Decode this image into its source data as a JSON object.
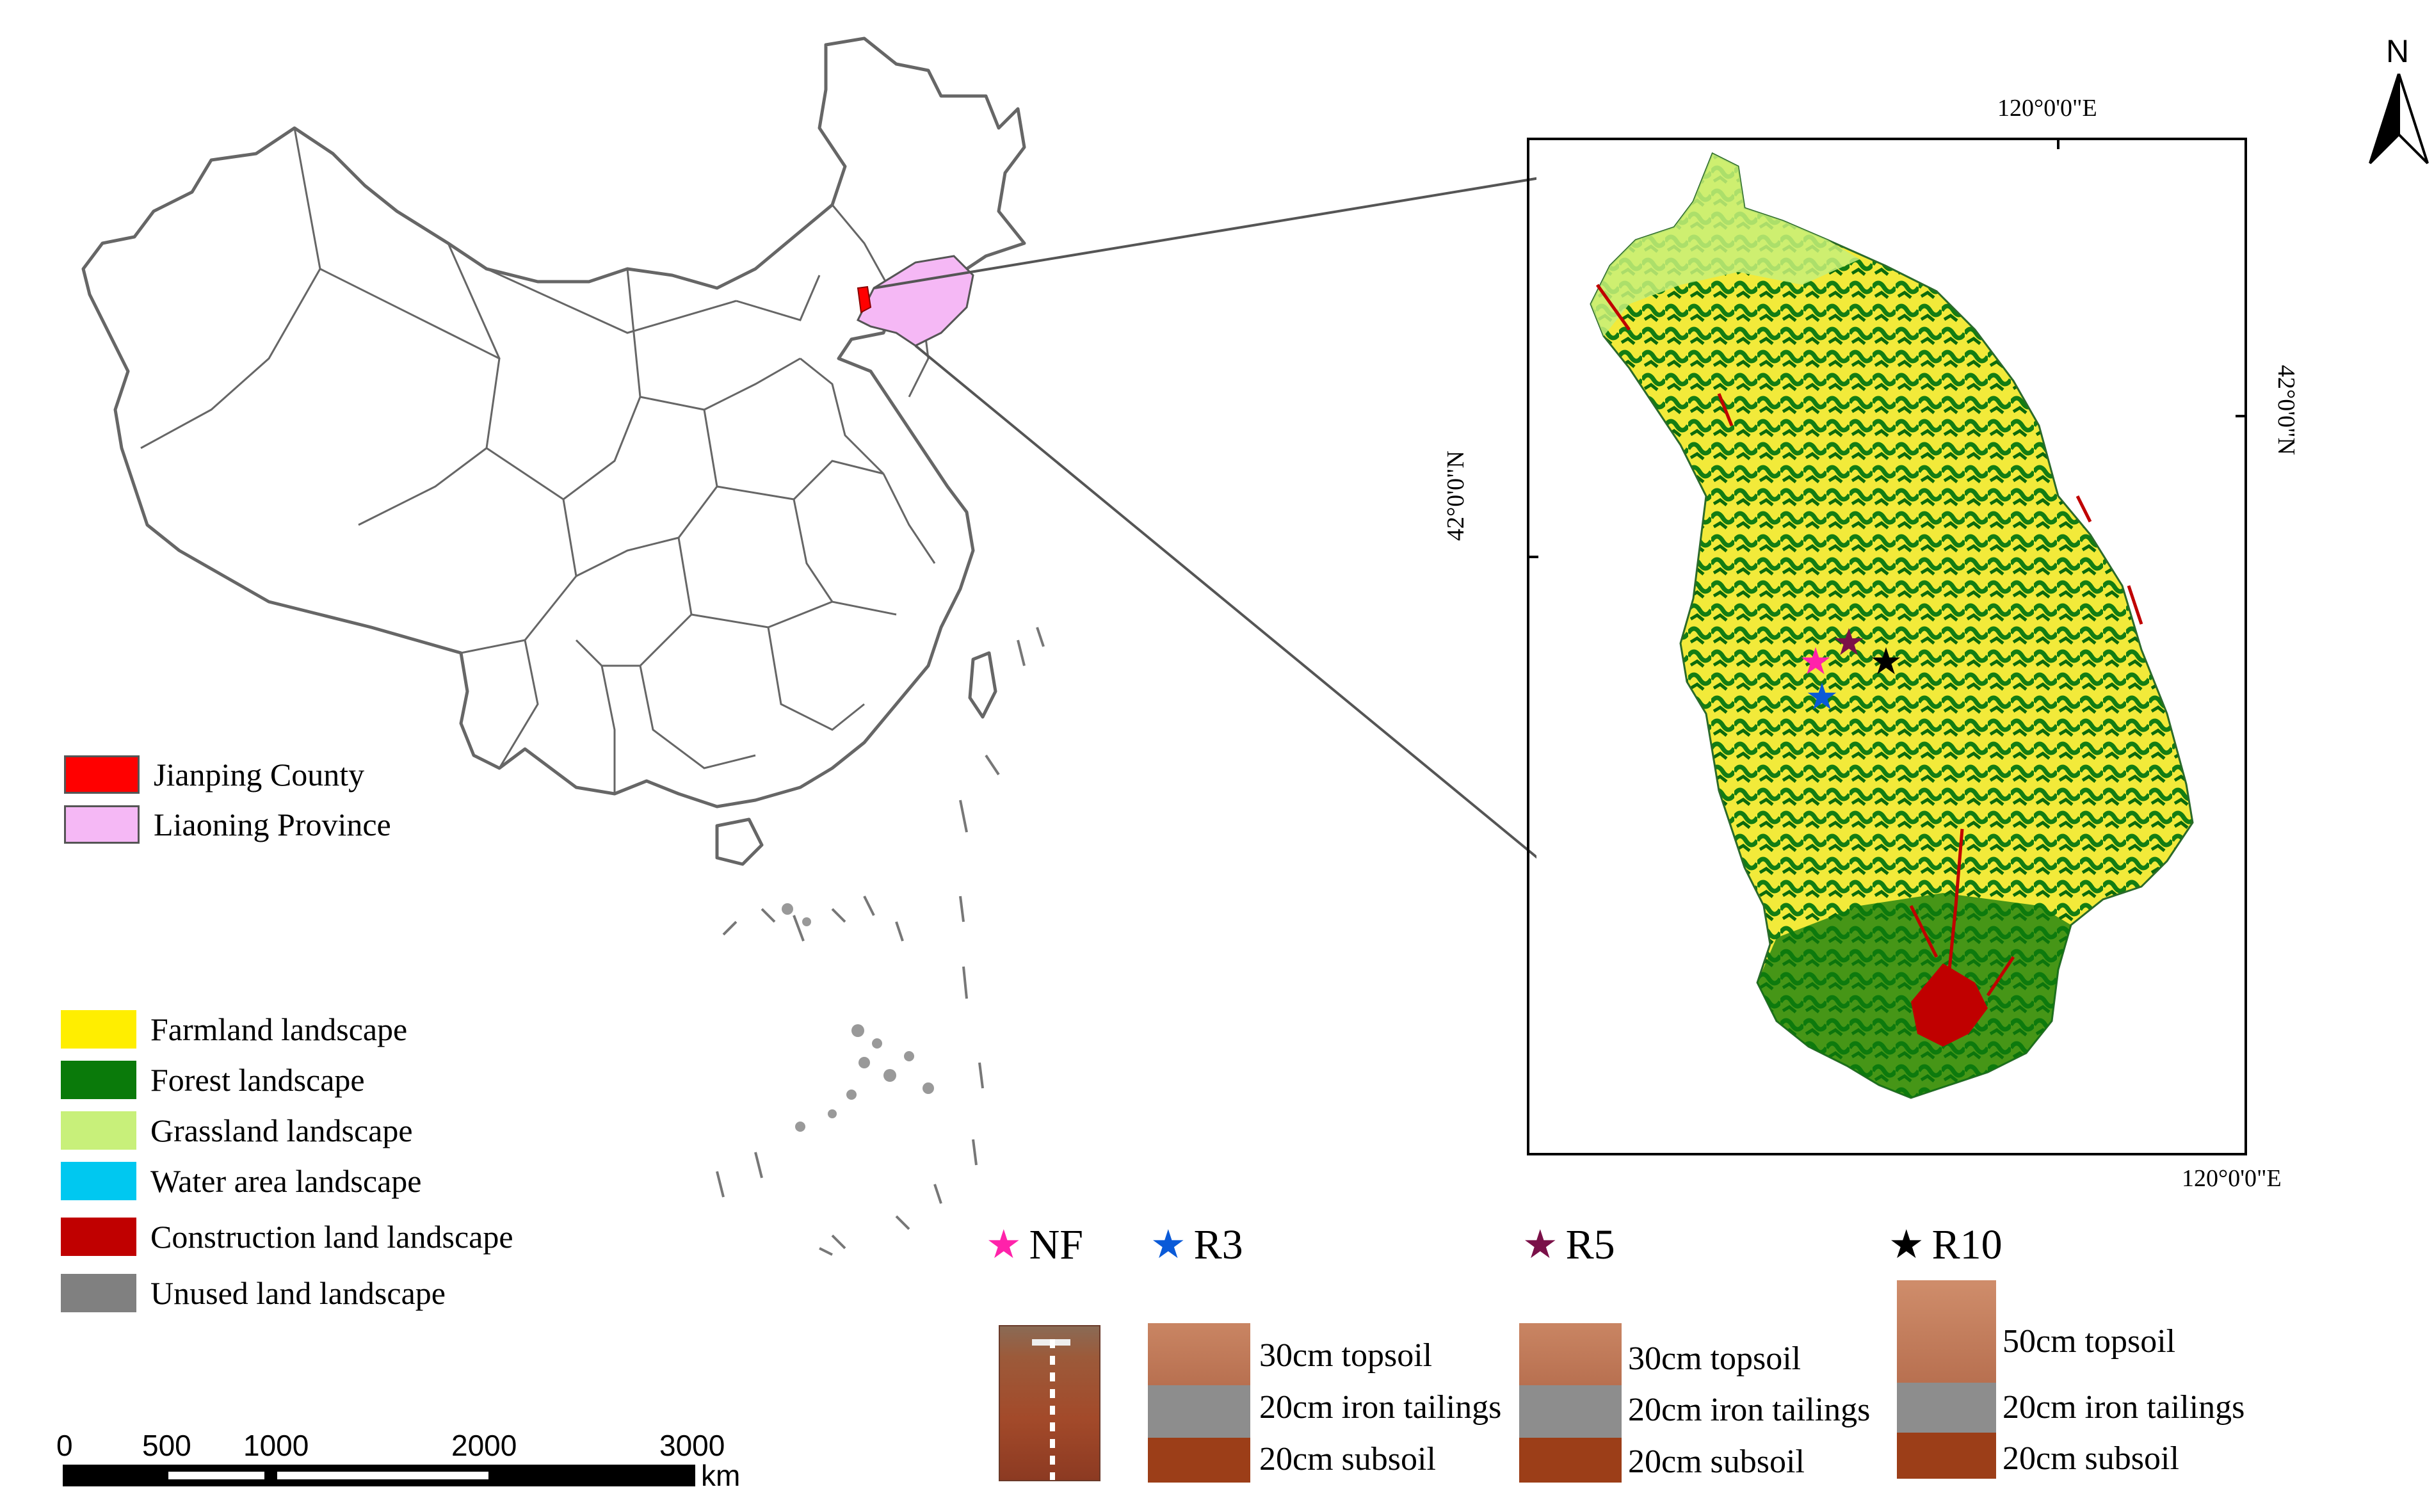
{
  "north_arrow": {
    "label": "N"
  },
  "county_map": {
    "coord_top": "120°0'0\"E",
    "coord_bottom": "120°0'0\"E",
    "coord_left": "42°0'0\"N",
    "coord_right": "42°0'0\"N"
  },
  "region_legend": [
    {
      "label": "Jianping County",
      "color": "#ff0000"
    },
    {
      "label": "Liaoning Province",
      "color": "#f5b8f5"
    }
  ],
  "landscape_legend": [
    {
      "label": "Farmland landscape",
      "color": "#ffee00"
    },
    {
      "label": "Forest landscape",
      "color": "#0a7a0a"
    },
    {
      "label": "Grassland landscape",
      "color": "#c8f07a"
    },
    {
      "label": "Water area landscape",
      "color": "#00c8f0"
    },
    {
      "label": "Construction land landscape",
      "color": "#c00000"
    },
    {
      "label": "Unused land landscape",
      "color": "#808080"
    }
  ],
  "scale_bar": {
    "ticks": [
      "0",
      "500",
      "1000",
      "2000",
      "3000"
    ],
    "unit": "km"
  },
  "sites": [
    {
      "label": "NF",
      "color": "#ff22aa"
    },
    {
      "label": "R3",
      "color": "#0a5ad8"
    },
    {
      "label": "R5",
      "color": "#7a1048"
    },
    {
      "label": "R10",
      "color": "#000000"
    }
  ],
  "profiles": [
    {
      "site": "R3",
      "topsoil": "30cm topsoil",
      "tailings": "20cm iron tailings",
      "subsoil": "20cm subsoil"
    },
    {
      "site": "R5",
      "topsoil": "30cm topsoil",
      "tailings": "20cm iron tailings",
      "subsoil": "20cm subsoil"
    },
    {
      "site": "R10",
      "topsoil": "50cm topsoil",
      "tailings": "20cm iron tailings",
      "subsoil": "20cm subsoil"
    }
  ]
}
